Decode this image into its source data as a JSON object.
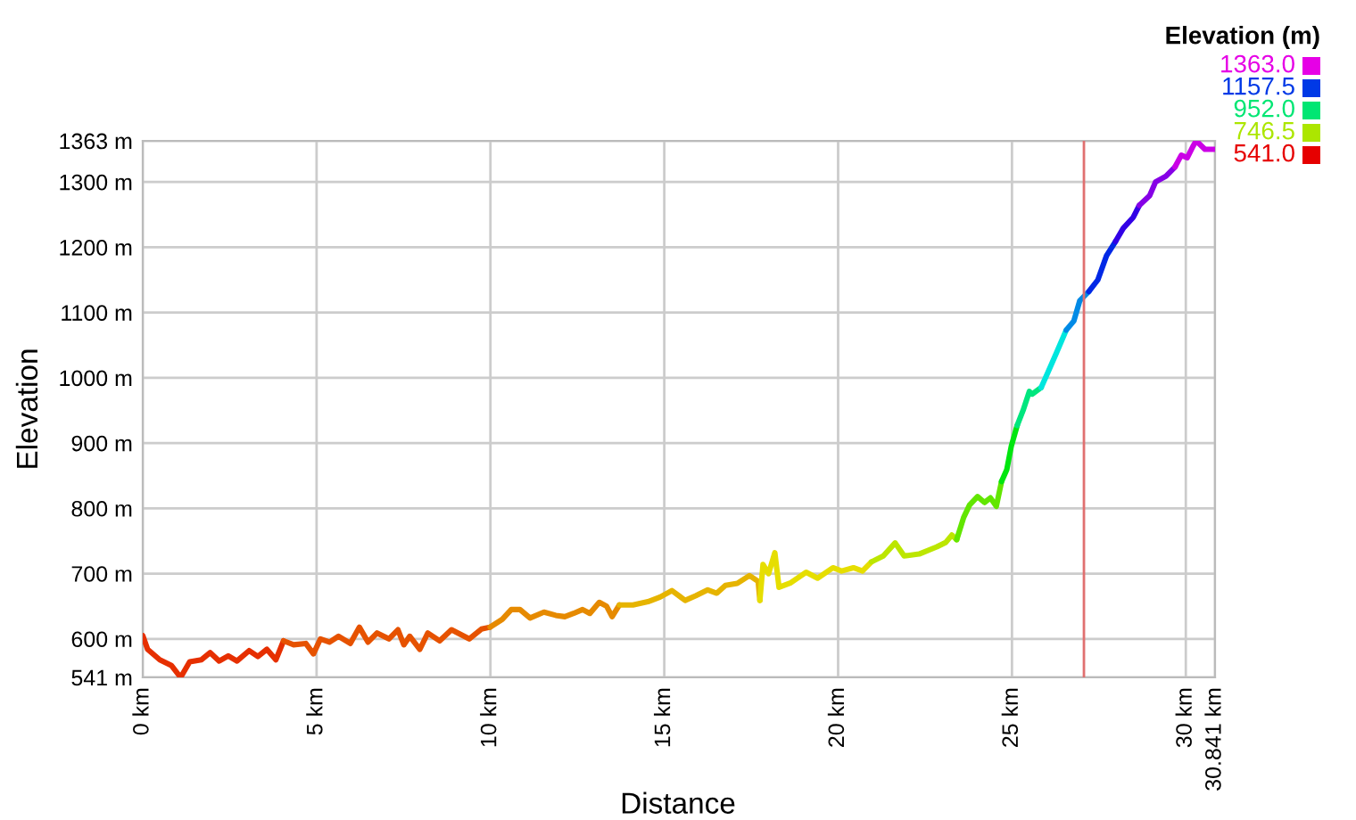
{
  "chart_data": {
    "type": "line",
    "xlabel": "Distance",
    "ylabel": "Elevation",
    "clabel": "Elevation (m)",
    "cticks": [
      {
        "value": 1363,
        "label": "1363.0"
      },
      {
        "value": 1157.5,
        "label": "1157.5"
      },
      {
        "value": 952,
        "label": "952.0"
      },
      {
        "value": 746.5,
        "label": "746.5"
      },
      {
        "value": 541,
        "label": "541.0"
      }
    ],
    "series": [
      {
        "color": "#e62f00",
        "x": [
          0.0,
          0.14,
          0.49,
          0.83,
          1.09,
          1.35,
          1.69,
          1.94,
          2.2,
          2.46,
          2.71,
          3.06,
          3.31,
          3.57,
          3.83,
          4.05
        ],
        "values": [
          605,
          584,
          568,
          559,
          541,
          565,
          568,
          579,
          566,
          574,
          566,
          582,
          573,
          584,
          568,
          597
        ]
      },
      {
        "color": "#e65200",
        "x": [
          4.05,
          4.34,
          4.69,
          4.91,
          5.11,
          5.37,
          5.63,
          5.97,
          6.23,
          6.48,
          6.74,
          7.08,
          7.34,
          7.51,
          7.68,
          7.97,
          8.2,
          8.54,
          8.88,
          9.39,
          9.74,
          9.99
        ],
        "values": [
          597,
          591,
          593,
          577,
          600,
          595,
          604,
          593,
          618,
          595,
          609,
          600,
          614,
          591,
          604,
          584,
          609,
          597,
          614,
          600,
          615,
          618
        ]
      },
      {
        "color": "#e68a00",
        "x": [
          9.99,
          10.34,
          10.6,
          10.85,
          11.14,
          11.54,
          11.88,
          12.14,
          12.39,
          12.65,
          12.86,
          13.13,
          13.34,
          13.5,
          13.71
        ],
        "values": [
          618,
          630,
          645,
          645,
          632,
          641,
          636,
          634,
          639,
          645,
          639,
          656,
          650,
          634,
          652
        ]
      },
      {
        "color": "#e6b400",
        "x": [
          13.71,
          14.1,
          14.53,
          14.88,
          15.22,
          15.6,
          15.9,
          16.25,
          16.51,
          16.76,
          17.1,
          17.45,
          17.7,
          17.75
        ],
        "values": [
          652,
          652,
          657,
          664,
          674,
          659,
          666,
          675,
          670,
          682,
          685,
          697,
          688,
          659
        ]
      },
      {
        "color": "#e6de00",
        "x": [
          17.75,
          17.84,
          18.0,
          18.18,
          18.3,
          18.64,
          19.08,
          19.41,
          19.85,
          20.1,
          20.44,
          20.7,
          20.96
        ],
        "values": [
          659,
          714,
          700,
          732,
          679,
          686,
          702,
          693,
          709,
          704,
          709,
          704,
          718
        ]
      },
      {
        "color": "#bce600",
        "x": [
          20.96,
          21.3,
          21.64,
          21.9,
          22.33,
          22.84,
          23.1,
          23.27,
          23.41
        ],
        "values": [
          718,
          727,
          747,
          727,
          730,
          741,
          748,
          759,
          752
        ]
      },
      {
        "color": "#62e600",
        "x": [
          23.41,
          23.61,
          23.78,
          24.01,
          24.21,
          24.38,
          24.55,
          24.7
        ],
        "values": [
          752,
          786,
          805,
          818,
          809,
          816,
          803,
          841
        ]
      },
      {
        "color": "#00e60f",
        "x": [
          24.7,
          24.85,
          24.98,
          25.15
        ],
        "values": [
          841,
          859,
          895,
          927
        ]
      },
      {
        "color": "#00e67e",
        "x": [
          25.15,
          25.32,
          25.5,
          25.58,
          25.84
        ],
        "values": [
          927,
          950,
          979,
          975,
          985
        ]
      },
      {
        "color": "#00e6de",
        "x": [
          25.84,
          26.04,
          26.27,
          26.56
        ],
        "values": [
          985,
          1009,
          1037,
          1073
        ]
      },
      {
        "color": "#008ae6",
        "x": [
          26.56,
          26.78,
          26.95,
          27.21
        ],
        "values": [
          1073,
          1087,
          1118,
          1132
        ]
      },
      {
        "color": "#0028e6",
        "x": [
          27.21,
          27.47,
          27.72,
          27.98
        ],
        "values": [
          1132,
          1150,
          1187,
          1209
        ]
      },
      {
        "color": "#3200e6",
        "x": [
          27.98,
          28.2,
          28.49,
          28.66
        ],
        "values": [
          1209,
          1229,
          1246,
          1264
        ]
      },
      {
        "color": "#8600e6",
        "x": [
          28.66,
          28.96,
          29.13,
          29.43,
          29.69
        ],
        "values": [
          1264,
          1279,
          1300,
          1309,
          1323
        ]
      },
      {
        "color": "#cb00e6",
        "x": [
          29.69,
          29.87,
          30.04,
          30.21,
          30.3,
          30.55,
          30.841
        ],
        "values": [
          1323,
          1341,
          1337,
          1355,
          1363,
          1350,
          1350
        ]
      }
    ],
    "xlim": [
      0,
      30.841
    ],
    "ylim": [
      541,
      1363
    ],
    "xticks": [
      {
        "value": 0,
        "label": "0 km"
      },
      {
        "value": 5,
        "label": "5 km"
      },
      {
        "value": 10,
        "label": "10 km"
      },
      {
        "value": 15,
        "label": "15 km"
      },
      {
        "value": 20,
        "label": "20 km"
      },
      {
        "value": 25,
        "label": "25 km"
      },
      {
        "value": 30,
        "label": "30 km"
      },
      {
        "value": 30.841,
        "label": "30.841 km"
      }
    ],
    "yticks": [
      {
        "value": 541,
        "label": "541 m"
      },
      {
        "value": 600,
        "label": "600 m"
      },
      {
        "value": 700,
        "label": "700 m"
      },
      {
        "value": 800,
        "label": "800 m"
      },
      {
        "value": 900,
        "label": "900 m"
      },
      {
        "value": 1000,
        "label": "1000 m"
      },
      {
        "value": 1100,
        "label": "1100 m"
      },
      {
        "value": 1200,
        "label": "1200 m"
      },
      {
        "value": 1300,
        "label": "1300 m"
      },
      {
        "value": 1363,
        "label": "1363 m"
      }
    ],
    "grid": true,
    "ref_lines": [
      {
        "axis": "x",
        "value": 27.07,
        "color": "#e07070"
      }
    ]
  }
}
